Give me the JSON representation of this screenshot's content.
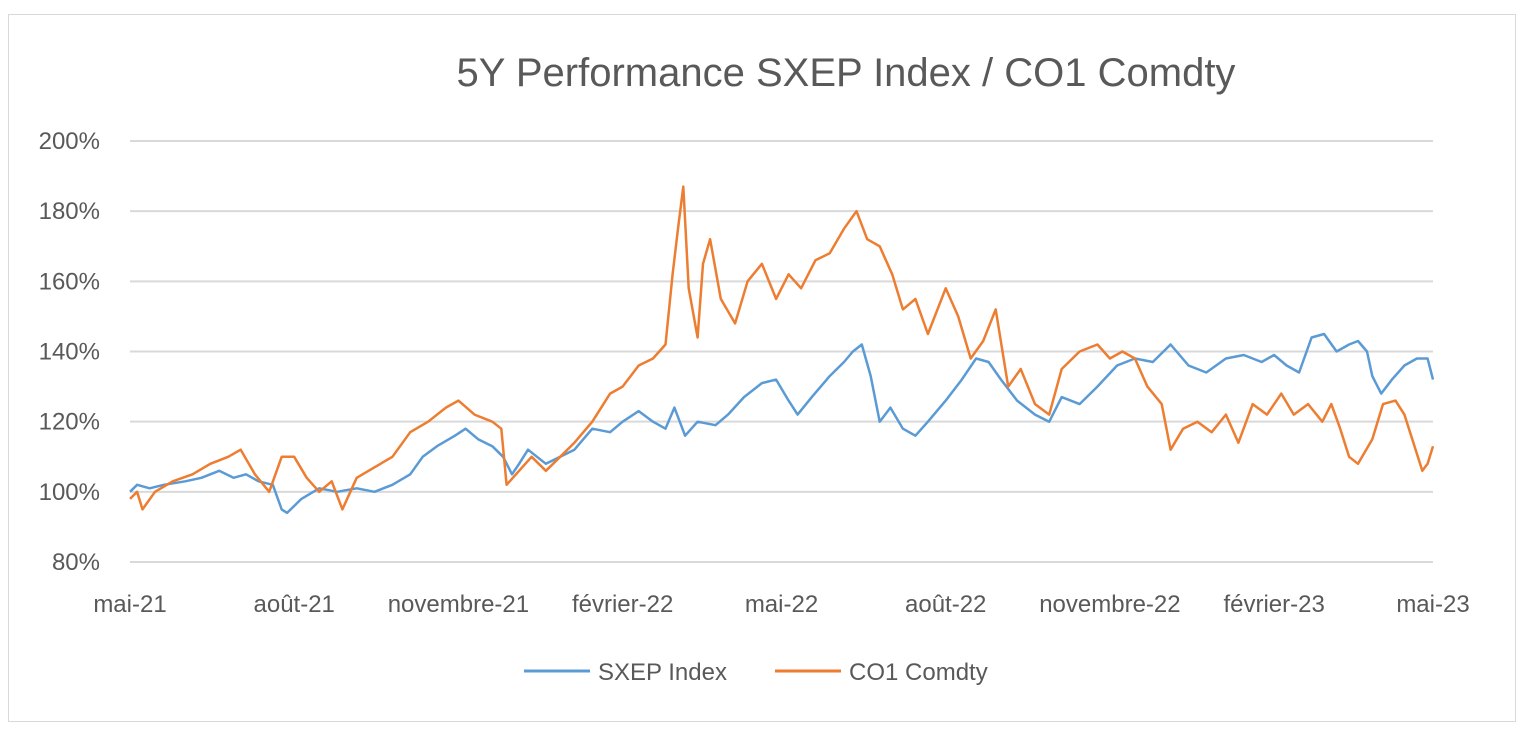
{
  "chart_data": {
    "type": "line",
    "title": "5Y Performance SXEP Index / CO1 Comdty",
    "xlabel": "",
    "ylabel": "",
    "ylim": [
      0.8,
      2.0
    ],
    "y_ticks": [
      "80%",
      "100%",
      "120%",
      "140%",
      "160%",
      "180%",
      "200%"
    ],
    "y_tick_values": [
      0.8,
      1.0,
      1.2,
      1.4,
      1.6,
      1.8,
      2.0
    ],
    "x_tick_labels": [
      "mai-21",
      "août-21",
      "novembre-21",
      "février-22",
      "mai-22",
      "août-22",
      "novembre-22",
      "février-23",
      "mai-23"
    ],
    "x_tick_dates": [
      "2021-05-01",
      "2021-08-01",
      "2021-11-01",
      "2022-02-01",
      "2022-05-01",
      "2022-08-01",
      "2022-11-01",
      "2023-02-01",
      "2023-05-01"
    ],
    "xlim": [
      "2021-05-01",
      "2023-05-01"
    ],
    "grid": "horizontal",
    "legend_position": "bottom",
    "series": [
      {
        "name": "SXEP Index",
        "color": "#5b9bd5",
        "points": [
          [
            "2021-05-01",
            1.0
          ],
          [
            "2021-05-05",
            1.02
          ],
          [
            "2021-05-12",
            1.01
          ],
          [
            "2021-05-20",
            1.02
          ],
          [
            "2021-06-01",
            1.03
          ],
          [
            "2021-06-10",
            1.04
          ],
          [
            "2021-06-20",
            1.06
          ],
          [
            "2021-06-28",
            1.04
          ],
          [
            "2021-07-05",
            1.05
          ],
          [
            "2021-07-12",
            1.03
          ],
          [
            "2021-07-20",
            1.02
          ],
          [
            "2021-07-25",
            0.95
          ],
          [
            "2021-07-28",
            0.94
          ],
          [
            "2021-08-05",
            0.98
          ],
          [
            "2021-08-15",
            1.01
          ],
          [
            "2021-08-25",
            1.0
          ],
          [
            "2021-09-05",
            1.01
          ],
          [
            "2021-09-15",
            1.0
          ],
          [
            "2021-09-25",
            1.02
          ],
          [
            "2021-10-05",
            1.05
          ],
          [
            "2021-10-12",
            1.1
          ],
          [
            "2021-10-20",
            1.13
          ],
          [
            "2021-10-30",
            1.16
          ],
          [
            "2021-11-05",
            1.18
          ],
          [
            "2021-11-12",
            1.15
          ],
          [
            "2021-11-20",
            1.13
          ],
          [
            "2021-11-26",
            1.1
          ],
          [
            "2021-12-01",
            1.05
          ],
          [
            "2021-12-05",
            1.08
          ],
          [
            "2021-12-10",
            1.12
          ],
          [
            "2021-12-15",
            1.1
          ],
          [
            "2021-12-20",
            1.08
          ],
          [
            "2021-12-28",
            1.1
          ],
          [
            "2022-01-05",
            1.12
          ],
          [
            "2022-01-15",
            1.18
          ],
          [
            "2022-01-25",
            1.17
          ],
          [
            "2022-02-01",
            1.2
          ],
          [
            "2022-02-10",
            1.23
          ],
          [
            "2022-02-18",
            1.2
          ],
          [
            "2022-02-25",
            1.18
          ],
          [
            "2022-03-02",
            1.24
          ],
          [
            "2022-03-08",
            1.16
          ],
          [
            "2022-03-15",
            1.2
          ],
          [
            "2022-03-25",
            1.19
          ],
          [
            "2022-04-01",
            1.22
          ],
          [
            "2022-04-10",
            1.27
          ],
          [
            "2022-04-20",
            1.31
          ],
          [
            "2022-04-28",
            1.32
          ],
          [
            "2022-05-05",
            1.26
          ],
          [
            "2022-05-10",
            1.22
          ],
          [
            "2022-05-18",
            1.27
          ],
          [
            "2022-05-28",
            1.33
          ],
          [
            "2022-06-05",
            1.37
          ],
          [
            "2022-06-10",
            1.4
          ],
          [
            "2022-06-15",
            1.42
          ],
          [
            "2022-06-20",
            1.33
          ],
          [
            "2022-06-25",
            1.2
          ],
          [
            "2022-07-01",
            1.24
          ],
          [
            "2022-07-08",
            1.18
          ],
          [
            "2022-07-15",
            1.16
          ],
          [
            "2022-07-22",
            1.2
          ],
          [
            "2022-08-01",
            1.26
          ],
          [
            "2022-08-10",
            1.32
          ],
          [
            "2022-08-18",
            1.38
          ],
          [
            "2022-08-25",
            1.37
          ],
          [
            "2022-09-01",
            1.32
          ],
          [
            "2022-09-10",
            1.26
          ],
          [
            "2022-09-20",
            1.22
          ],
          [
            "2022-09-28",
            1.2
          ],
          [
            "2022-10-05",
            1.27
          ],
          [
            "2022-10-15",
            1.25
          ],
          [
            "2022-10-25",
            1.3
          ],
          [
            "2022-11-05",
            1.36
          ],
          [
            "2022-11-15",
            1.38
          ],
          [
            "2022-11-25",
            1.37
          ],
          [
            "2022-12-05",
            1.42
          ],
          [
            "2022-12-15",
            1.36
          ],
          [
            "2022-12-25",
            1.34
          ],
          [
            "2023-01-05",
            1.38
          ],
          [
            "2023-01-15",
            1.39
          ],
          [
            "2023-01-25",
            1.37
          ],
          [
            "2023-02-01",
            1.39
          ],
          [
            "2023-02-08",
            1.36
          ],
          [
            "2023-02-15",
            1.34
          ],
          [
            "2023-02-22",
            1.44
          ],
          [
            "2023-03-01",
            1.45
          ],
          [
            "2023-03-08",
            1.4
          ],
          [
            "2023-03-15",
            1.42
          ],
          [
            "2023-03-20",
            1.43
          ],
          [
            "2023-03-25",
            1.4
          ],
          [
            "2023-03-28",
            1.33
          ],
          [
            "2023-04-02",
            1.28
          ],
          [
            "2023-04-08",
            1.32
          ],
          [
            "2023-04-15",
            1.36
          ],
          [
            "2023-04-22",
            1.38
          ],
          [
            "2023-04-28",
            1.38
          ],
          [
            "2023-05-01",
            1.32
          ]
        ]
      },
      {
        "name": "CO1 Comdty",
        "color": "#ed7d31",
        "points": [
          [
            "2021-05-01",
            0.98
          ],
          [
            "2021-05-05",
            1.0
          ],
          [
            "2021-05-08",
            0.95
          ],
          [
            "2021-05-15",
            1.0
          ],
          [
            "2021-05-25",
            1.03
          ],
          [
            "2021-06-05",
            1.05
          ],
          [
            "2021-06-15",
            1.08
          ],
          [
            "2021-06-25",
            1.1
          ],
          [
            "2021-07-02",
            1.12
          ],
          [
            "2021-07-10",
            1.05
          ],
          [
            "2021-07-18",
            1.0
          ],
          [
            "2021-07-25",
            1.1
          ],
          [
            "2021-08-01",
            1.1
          ],
          [
            "2021-08-08",
            1.04
          ],
          [
            "2021-08-15",
            1.0
          ],
          [
            "2021-08-22",
            1.03
          ],
          [
            "2021-08-28",
            0.95
          ],
          [
            "2021-09-05",
            1.04
          ],
          [
            "2021-09-15",
            1.07
          ],
          [
            "2021-09-25",
            1.1
          ],
          [
            "2021-10-05",
            1.17
          ],
          [
            "2021-10-15",
            1.2
          ],
          [
            "2021-10-25",
            1.24
          ],
          [
            "2021-11-01",
            1.26
          ],
          [
            "2021-11-10",
            1.22
          ],
          [
            "2021-11-20",
            1.2
          ],
          [
            "2021-11-25",
            1.18
          ],
          [
            "2021-11-28",
            1.02
          ],
          [
            "2021-12-05",
            1.06
          ],
          [
            "2021-12-12",
            1.1
          ],
          [
            "2021-12-20",
            1.06
          ],
          [
            "2021-12-28",
            1.1
          ],
          [
            "2022-01-05",
            1.14
          ],
          [
            "2022-01-15",
            1.2
          ],
          [
            "2022-01-25",
            1.28
          ],
          [
            "2022-02-01",
            1.3
          ],
          [
            "2022-02-10",
            1.36
          ],
          [
            "2022-02-18",
            1.38
          ],
          [
            "2022-02-25",
            1.42
          ],
          [
            "2022-03-01",
            1.62
          ],
          [
            "2022-03-04",
            1.75
          ],
          [
            "2022-03-07",
            1.87
          ],
          [
            "2022-03-10",
            1.58
          ],
          [
            "2022-03-15",
            1.44
          ],
          [
            "2022-03-18",
            1.65
          ],
          [
            "2022-03-22",
            1.72
          ],
          [
            "2022-03-28",
            1.55
          ],
          [
            "2022-04-05",
            1.48
          ],
          [
            "2022-04-12",
            1.6
          ],
          [
            "2022-04-20",
            1.65
          ],
          [
            "2022-04-28",
            1.55
          ],
          [
            "2022-05-05",
            1.62
          ],
          [
            "2022-05-12",
            1.58
          ],
          [
            "2022-05-20",
            1.66
          ],
          [
            "2022-05-28",
            1.68
          ],
          [
            "2022-06-05",
            1.75
          ],
          [
            "2022-06-12",
            1.8
          ],
          [
            "2022-06-18",
            1.72
          ],
          [
            "2022-06-25",
            1.7
          ],
          [
            "2022-07-02",
            1.62
          ],
          [
            "2022-07-08",
            1.52
          ],
          [
            "2022-07-15",
            1.55
          ],
          [
            "2022-07-22",
            1.45
          ],
          [
            "2022-08-01",
            1.58
          ],
          [
            "2022-08-08",
            1.5
          ],
          [
            "2022-08-15",
            1.38
          ],
          [
            "2022-08-22",
            1.43
          ],
          [
            "2022-08-29",
            1.52
          ],
          [
            "2022-09-05",
            1.3
          ],
          [
            "2022-09-12",
            1.35
          ],
          [
            "2022-09-20",
            1.25
          ],
          [
            "2022-09-28",
            1.22
          ],
          [
            "2022-10-05",
            1.35
          ],
          [
            "2022-10-15",
            1.4
          ],
          [
            "2022-10-25",
            1.42
          ],
          [
            "2022-11-01",
            1.38
          ],
          [
            "2022-11-08",
            1.4
          ],
          [
            "2022-11-15",
            1.38
          ],
          [
            "2022-11-22",
            1.3
          ],
          [
            "2022-11-30",
            1.25
          ],
          [
            "2022-12-05",
            1.12
          ],
          [
            "2022-12-12",
            1.18
          ],
          [
            "2022-12-20",
            1.2
          ],
          [
            "2022-12-28",
            1.17
          ],
          [
            "2023-01-05",
            1.22
          ],
          [
            "2023-01-12",
            1.14
          ],
          [
            "2023-01-20",
            1.25
          ],
          [
            "2023-01-28",
            1.22
          ],
          [
            "2023-02-05",
            1.28
          ],
          [
            "2023-02-12",
            1.22
          ],
          [
            "2023-02-20",
            1.25
          ],
          [
            "2023-02-28",
            1.2
          ],
          [
            "2023-03-05",
            1.25
          ],
          [
            "2023-03-10",
            1.18
          ],
          [
            "2023-03-15",
            1.1
          ],
          [
            "2023-03-20",
            1.08
          ],
          [
            "2023-03-28",
            1.15
          ],
          [
            "2023-04-03",
            1.25
          ],
          [
            "2023-04-10",
            1.26
          ],
          [
            "2023-04-15",
            1.22
          ],
          [
            "2023-04-20",
            1.14
          ],
          [
            "2023-04-25",
            1.06
          ],
          [
            "2023-04-28",
            1.08
          ],
          [
            "2023-05-01",
            1.13
          ]
        ]
      }
    ]
  }
}
